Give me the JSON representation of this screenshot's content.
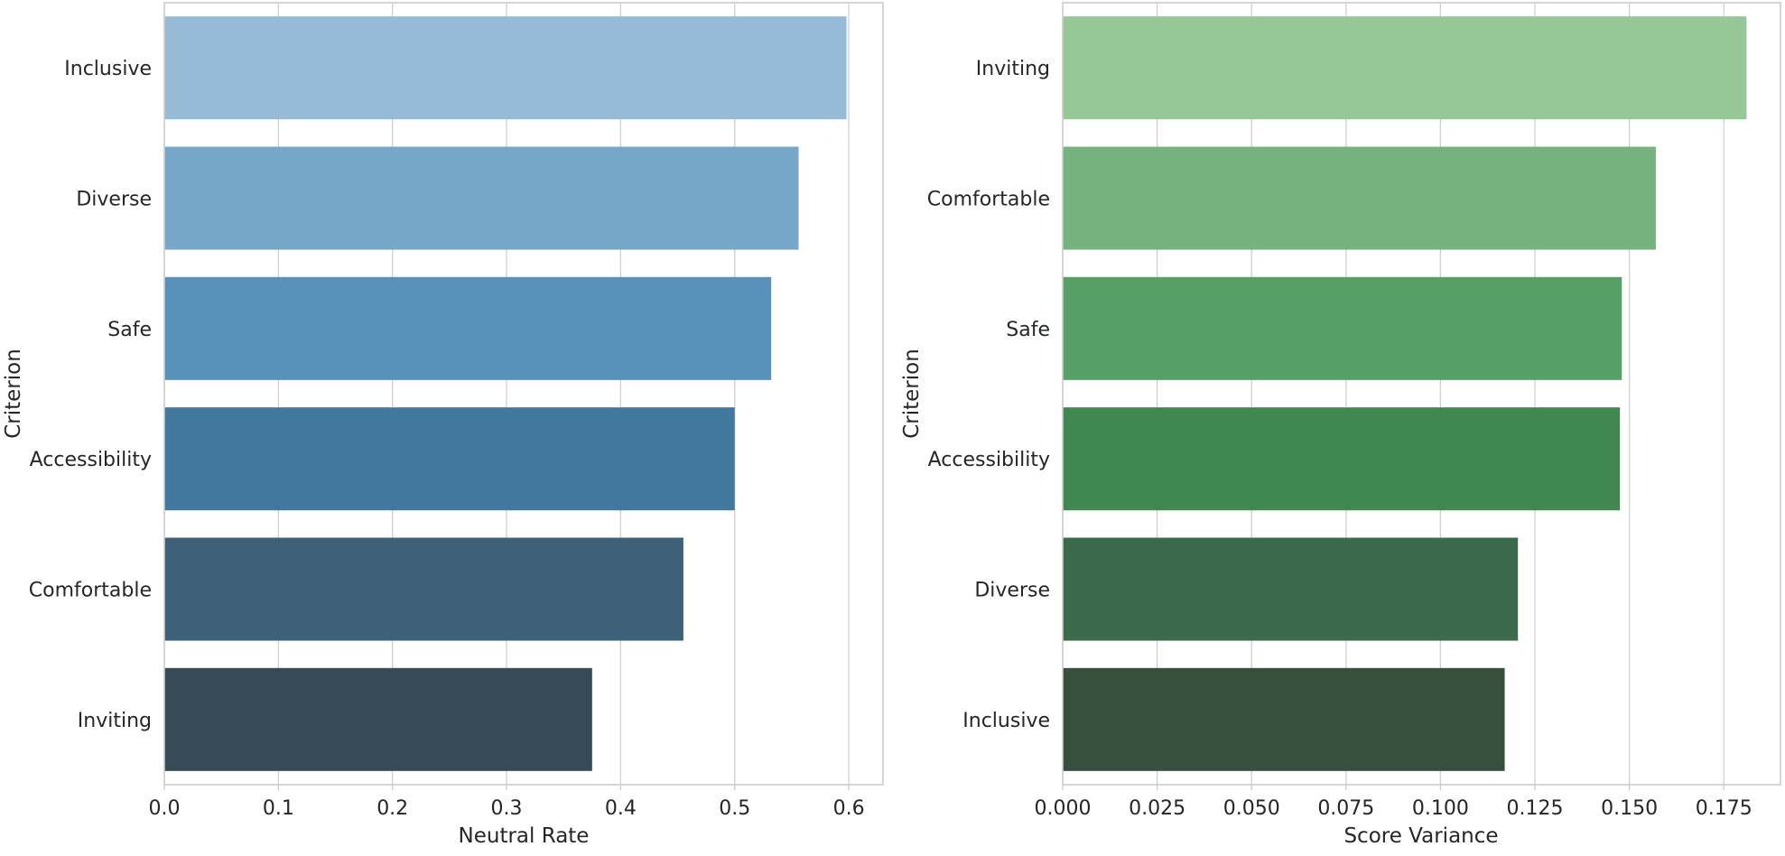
{
  "chart_data": [
    {
      "type": "bar",
      "orientation": "horizontal",
      "title": "",
      "xlabel": "Neutral Rate",
      "ylabel": "Criterion",
      "categories": [
        "Inclusive",
        "Diverse",
        "Safe",
        "Accessibility",
        "Comfortable",
        "Inviting"
      ],
      "values": [
        0.598,
        0.556,
        0.532,
        0.5,
        0.455,
        0.375
      ],
      "xlim": [
        0,
        0.63
      ],
      "xticks": [
        0.0,
        0.1,
        0.2,
        0.3,
        0.4,
        0.5,
        0.6
      ],
      "xtick_labels": [
        "0.0",
        "0.1",
        "0.2",
        "0.3",
        "0.4",
        "0.5",
        "0.6"
      ],
      "grid": true,
      "colors": [
        "#97bbd6",
        "#76a7c8",
        "#5891b9",
        "#43789e",
        "#3e6079",
        "#374a58"
      ]
    },
    {
      "type": "bar",
      "orientation": "horizontal",
      "title": "",
      "xlabel": "Score Variance",
      "ylabel": "Criterion",
      "categories": [
        "Inviting",
        "Comfortable",
        "Safe",
        "Accessibility",
        "Diverse",
        "Inclusive"
      ],
      "values": [
        0.181,
        0.157,
        0.148,
        0.1475,
        0.1205,
        0.117
      ],
      "xlim": [
        0,
        0.19
      ],
      "xticks": [
        0.0,
        0.025,
        0.05,
        0.075,
        0.1,
        0.125,
        0.15,
        0.175
      ],
      "xtick_labels": [
        "0.000",
        "0.025",
        "0.050",
        "0.075",
        "0.100",
        "0.125",
        "0.150",
        "0.175"
      ],
      "grid": true,
      "colors": [
        "#95c797",
        "#76b27d",
        "#569f65",
        "#418752",
        "#3b6a4a",
        "#37503e"
      ]
    }
  ]
}
